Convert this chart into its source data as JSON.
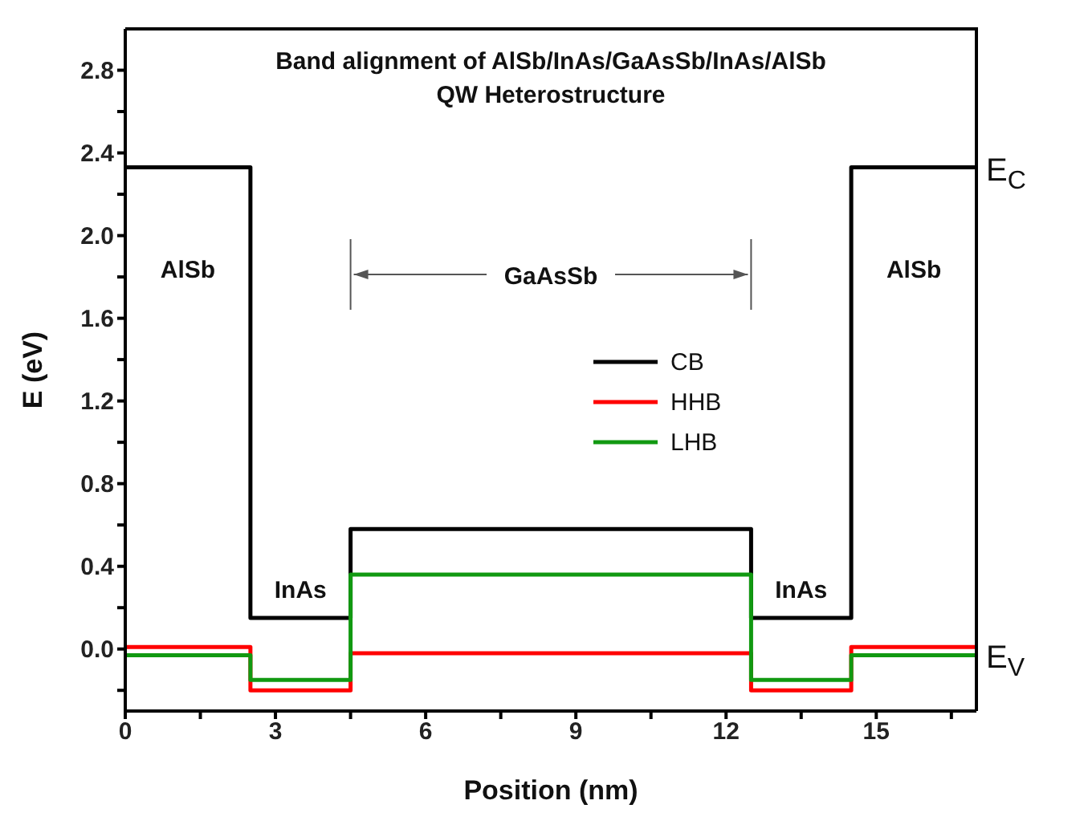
{
  "chart_data": {
    "type": "step",
    "title": "Band alignment of AlSb/InAs/GaAsSb/InAs/AlSb",
    "subtitle": "QW Heterostructure",
    "xlabel": "Position (nm)",
    "ylabel": "E (eV)",
    "x": [
      0,
      2.5,
      4.5,
      12.5,
      14.5,
      17
    ],
    "series": [
      {
        "name": "CB",
        "color": "#000000",
        "values": [
          2.33,
          0.15,
          0.58,
          0.15,
          2.33,
          2.33
        ]
      },
      {
        "name": "HHB",
        "color": "#ff0000",
        "values": [
          0.01,
          -0.2,
          -0.02,
          -0.2,
          0.01,
          0.01
        ]
      },
      {
        "name": "LHB",
        "color": "#119911",
        "values": [
          -0.03,
          -0.15,
          0.36,
          -0.15,
          -0.03,
          -0.03
        ]
      }
    ],
    "xlim": [
      0,
      17
    ],
    "ylim": [
      -0.3,
      3.0
    ],
    "xticks": [
      0,
      {
        "value": 1.5,
        "label": null
      },
      3,
      {
        "value": 4.5,
        "label": null
      },
      6,
      {
        "value": 7.5,
        "label": null
      },
      9,
      {
        "value": 10.5,
        "label": null
      },
      12,
      {
        "value": 13.5,
        "label": null
      },
      15,
      {
        "value": 16.5,
        "label": null
      }
    ],
    "yticks": [
      {
        "value": -0.2,
        "label": null
      },
      "0.0",
      {
        "value": 0.2,
        "label": null
      },
      {
        "value": 0.4,
        "label": "0.4"
      },
      {
        "value": 0.6,
        "label": null
      },
      {
        "value": 0.8,
        "label": "0.8"
      },
      {
        "value": 1.0,
        "label": null
      },
      {
        "value": 1.2,
        "label": "1.2"
      },
      {
        "value": 1.4,
        "label": null
      },
      {
        "value": 1.6,
        "label": "1.6"
      },
      {
        "value": 1.8,
        "label": null
      },
      {
        "value": 2.0,
        "label": "2.0"
      },
      {
        "value": 2.2,
        "label": null
      },
      {
        "value": 2.4,
        "label": "2.4"
      },
      {
        "value": 2.6,
        "label": null
      },
      {
        "value": 2.8,
        "label": "2.8"
      }
    ],
    "annotations": [
      "AlSb",
      "AlSb",
      "InAs",
      "InAs",
      "GaAsSb",
      {
        "text": "E$_{C}$",
        "x": 17,
        "y": 2.33
      },
      {
        "text": "E$_{V}$",
        "x": 17,
        "y": -0.03
      }
    ],
    "legend": "right",
    "marker": "none",
    "line_style": "solid"
  }
}
